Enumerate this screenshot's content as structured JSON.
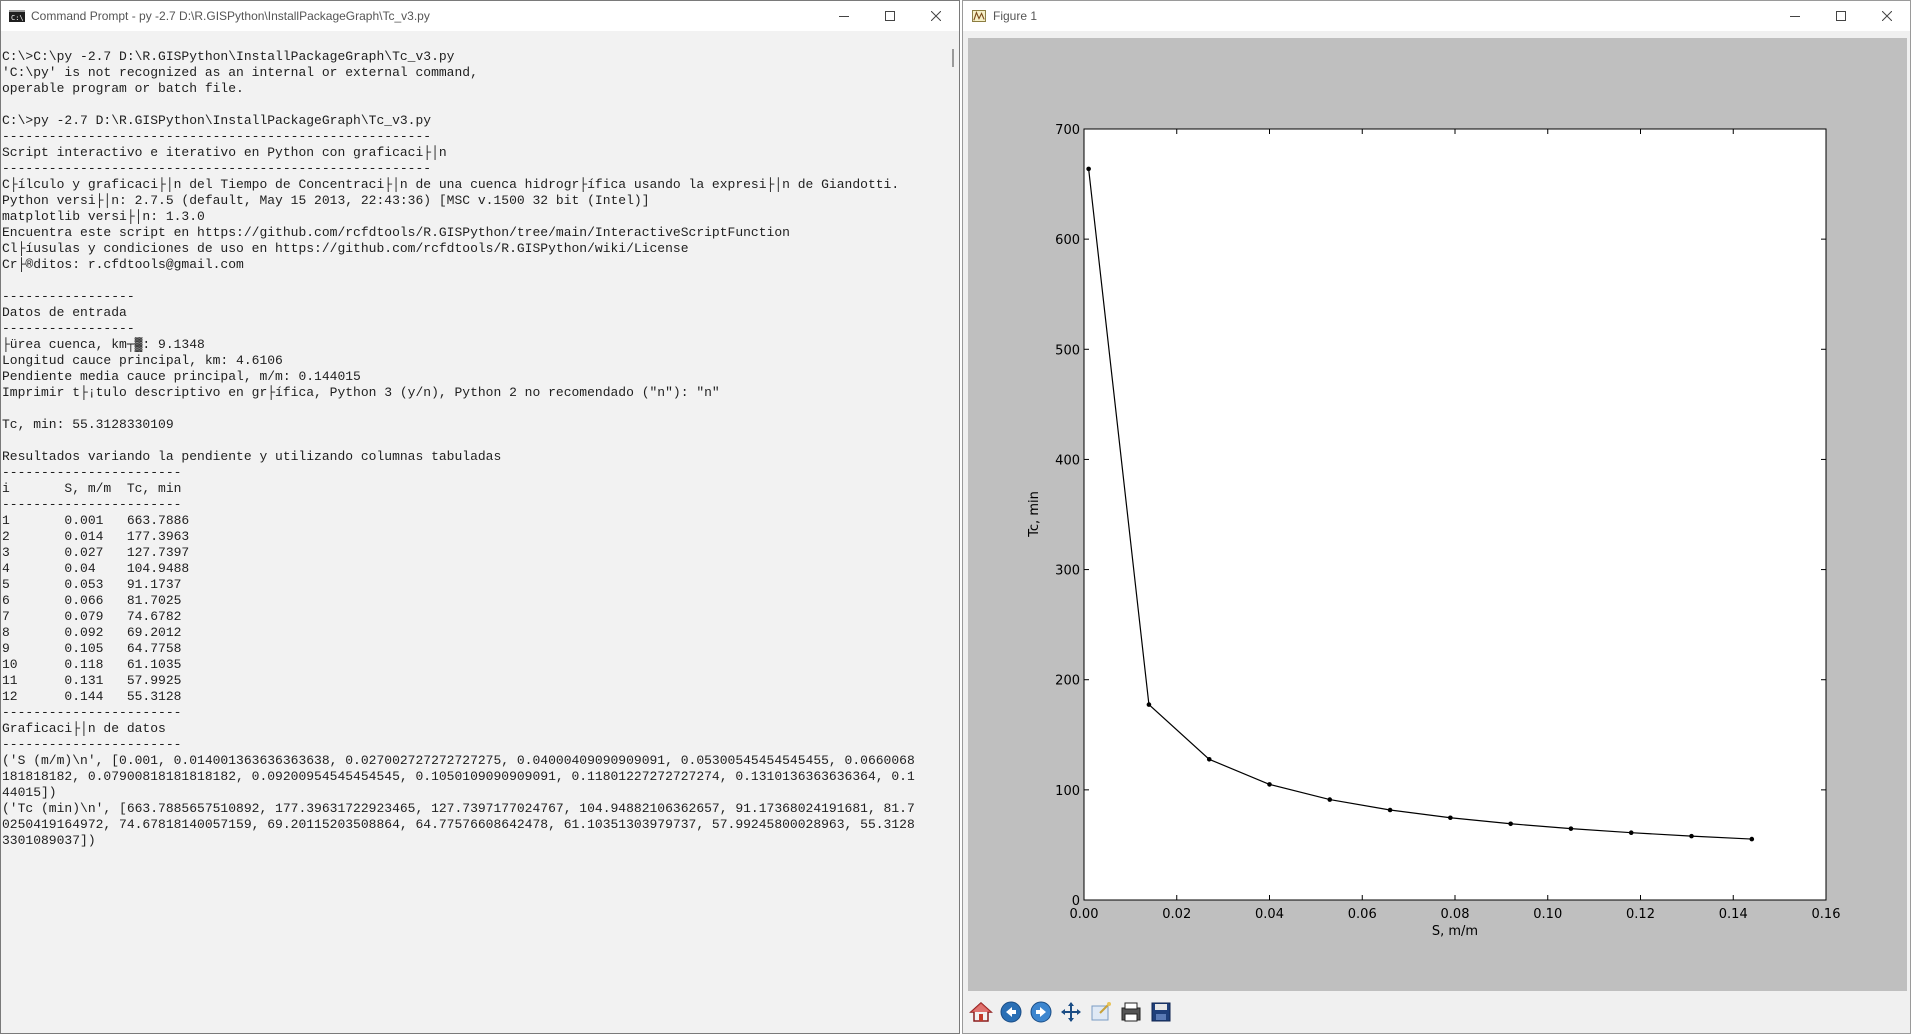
{
  "cmd_window": {
    "title": "Command Prompt - py  -2.7 D:\\R.GISPython\\InstallPackageGraph\\Tc_v3.py",
    "icon": "cmd-icon",
    "lines": [
      "C:\\>C:\\py -2.7 D:\\R.GISPython\\InstallPackageGraph\\Tc_v3.py",
      "'C:\\py' is not recognized as an internal or external command,",
      "operable program or batch file.",
      "",
      "C:\\>py -2.7 D:\\R.GISPython\\InstallPackageGraph\\Tc_v3.py",
      "-------------------------------------------------------",
      "Script interactivo e iterativo en Python con graficaci├│n",
      "-------------------------------------------------------",
      "C├ílculo y graficaci├│n del Tiempo de Concentraci├│n de una cuenca hidrogr├ífica usando la expresi├│n de Giandotti.",
      "Python versi├│n: 2.7.5 (default, May 15 2013, 22:43:36) [MSC v.1500 32 bit (Intel)]",
      "matplotlib versi├│n: 1.3.0",
      "Encuentra este script en https://github.com/rcfdtools/R.GISPython/tree/main/InteractiveScriptFunction",
      "Cl├íusulas y condiciones de uso en https://github.com/rcfdtools/R.GISPython/wiki/License",
      "Cr├®ditos: r.cfdtools@gmail.com",
      "",
      "-----------------",
      "Datos de entrada",
      "-----------------",
      "├ürea cuenca, km┬▓: 9.1348",
      "Longitud cauce principal, km: 4.6106",
      "Pendiente media cauce principal, m/m: 0.144015",
      "Imprimir t├¡tulo descriptivo en gr├ífica, Python 3 (y/n), Python 2 no recomendado (\"n\"): \"n\"",
      "",
      "Tc, min: 55.3128330109",
      "",
      "Resultados variando la pendiente y utilizando columnas tabuladas",
      "-----------------------",
      "i       S, m/m  Tc, min",
      "-----------------------",
      "1       0.001   663.7886",
      "2       0.014   177.3963",
      "3       0.027   127.7397",
      "4       0.04    104.9488",
      "5       0.053   91.1737",
      "6       0.066   81.7025",
      "7       0.079   74.6782",
      "8       0.092   69.2012",
      "9       0.105   64.7758",
      "10      0.118   61.1035",
      "11      0.131   57.9925",
      "12      0.144   55.3128",
      "-----------------------",
      "Graficaci├│n de datos",
      "-----------------------",
      "('S (m/m)\\n', [0.001, 0.014001363636363638, 0.027002727272727275, 0.04000409090909091, 0.05300545454545455, 0.0660068",
      "181818182, 0.07900818181818182, 0.09200954545454545, 0.1050109090909091, 0.11801227272727274, 0.1310136363636364, 0.1",
      "44015])",
      "('Tc (min)\\n', [663.7885657510892, 177.39631722923465, 127.7397177024767, 104.94882106362657, 91.17368024191681, 81.7",
      "0250419164972, 74.67818140057159, 69.20115203508864, 64.77576608642478, 61.10351303979737, 57.99245800028963, 55.3128",
      "3301089037])"
    ]
  },
  "figure_window": {
    "title": "Figure 1",
    "icon": "matplotlib-icon",
    "toolbar": [
      {
        "name": "home-icon"
      },
      {
        "name": "back-icon"
      },
      {
        "name": "forward-icon"
      },
      {
        "name": "pan-icon"
      },
      {
        "name": "zoom-icon"
      },
      {
        "name": "subplots-icon"
      },
      {
        "name": "save-icon"
      }
    ]
  },
  "window_controls": {
    "minimize": "minimize-icon",
    "maximize": "maximize-icon",
    "close": "close-icon"
  },
  "chart_data": {
    "type": "line",
    "title": "",
    "xlabel": "S, m/m",
    "ylabel": "Tc, min",
    "xlim": [
      0.0,
      0.16
    ],
    "ylim": [
      0,
      700
    ],
    "xticks": [
      "0.00",
      "0.02",
      "0.04",
      "0.06",
      "0.08",
      "0.10",
      "0.12",
      "0.14",
      "0.16"
    ],
    "yticks": [
      "0",
      "100",
      "200",
      "300",
      "400",
      "500",
      "600",
      "700"
    ],
    "grid": false,
    "series": [
      {
        "x": [
          0.001,
          0.014,
          0.027,
          0.04,
          0.053,
          0.066,
          0.079,
          0.092,
          0.105,
          0.118,
          0.131,
          0.144
        ],
        "values": [
          663.7886,
          177.3963,
          127.7397,
          104.9488,
          91.1737,
          81.7025,
          74.6782,
          69.2012,
          64.7758,
          61.1035,
          57.9925,
          55.3128
        ],
        "color": "#000000",
        "marker": "point"
      }
    ]
  }
}
